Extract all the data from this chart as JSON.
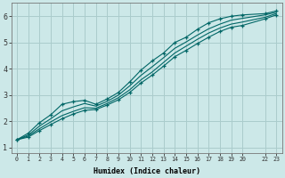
{
  "xlabel": "Humidex (Indice chaleur)",
  "ylabel": "",
  "bg_color": "#cce8e8",
  "grid_color": "#aacccc",
  "line_color": "#006666",
  "xlim": [
    -0.5,
    23.5
  ],
  "ylim": [
    0.8,
    6.5
  ],
  "xticks": [
    0,
    1,
    2,
    3,
    4,
    5,
    6,
    7,
    8,
    9,
    10,
    11,
    12,
    13,
    14,
    15,
    16,
    17,
    18,
    19,
    20,
    22,
    23
  ],
  "xtick_labels": [
    "0",
    "1",
    "2",
    "3",
    "4",
    "5",
    "6",
    "7",
    "8",
    "9",
    "10",
    "11",
    "12",
    "13",
    "14",
    "15",
    "16",
    "17",
    "18",
    "19",
    "20",
    "22",
    "23"
  ],
  "yticks": [
    1,
    2,
    3,
    4,
    5,
    6
  ],
  "lines": [
    {
      "x": [
        0,
        1,
        2,
        3,
        4,
        5,
        6,
        7,
        8,
        9,
        10,
        11,
        12,
        13,
        14,
        15,
        16,
        17,
        18,
        19,
        20,
        22,
        23
      ],
      "y": [
        1.3,
        1.55,
        1.95,
        2.25,
        2.65,
        2.75,
        2.8,
        2.65,
        2.85,
        3.1,
        3.5,
        3.95,
        4.3,
        4.6,
        5.0,
        5.2,
        5.5,
        5.75,
        5.9,
        6.0,
        6.05,
        6.1,
        6.2
      ],
      "marker": true,
      "marker_style": "+"
    },
    {
      "x": [
        0,
        1,
        2,
        3,
        4,
        5,
        6,
        7,
        8,
        9,
        10,
        11,
        12,
        13,
        14,
        15,
        16,
        17,
        18,
        19,
        20,
        22,
        23
      ],
      "y": [
        1.3,
        1.48,
        1.82,
        2.1,
        2.4,
        2.55,
        2.68,
        2.58,
        2.76,
        3.0,
        3.35,
        3.75,
        4.08,
        4.42,
        4.78,
        5.02,
        5.28,
        5.52,
        5.7,
        5.85,
        5.92,
        6.05,
        6.15
      ],
      "marker": false
    },
    {
      "x": [
        0,
        1,
        2,
        3,
        4,
        5,
        6,
        7,
        8,
        9,
        10,
        11,
        12,
        13,
        14,
        15,
        16,
        17,
        18,
        19,
        20,
        22,
        23
      ],
      "y": [
        1.3,
        1.44,
        1.72,
        1.98,
        2.22,
        2.38,
        2.52,
        2.5,
        2.68,
        2.9,
        3.2,
        3.58,
        3.88,
        4.24,
        4.6,
        4.86,
        5.12,
        5.36,
        5.55,
        5.7,
        5.78,
        5.96,
        6.1
      ],
      "marker": false
    },
    {
      "x": [
        0,
        1,
        2,
        3,
        4,
        5,
        6,
        7,
        8,
        9,
        10,
        11,
        12,
        13,
        14,
        15,
        16,
        17,
        18,
        19,
        20,
        22,
        23
      ],
      "y": [
        1.3,
        1.4,
        1.65,
        1.88,
        2.1,
        2.28,
        2.42,
        2.45,
        2.62,
        2.82,
        3.1,
        3.46,
        3.76,
        4.1,
        4.46,
        4.7,
        4.96,
        5.2,
        5.42,
        5.58,
        5.65,
        5.9,
        6.05
      ],
      "marker": true,
      "marker_style": "+"
    }
  ]
}
